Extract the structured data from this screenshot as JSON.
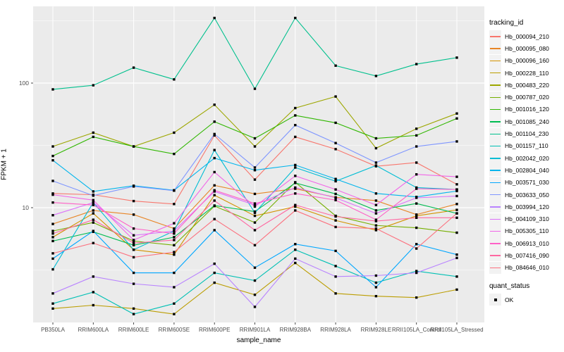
{
  "figure": {
    "background": "#FFFFFF",
    "panel_background": "#EBEBEB",
    "gridline_color": "#FFFFFF",
    "tick_label_color": "#4D4D4D",
    "point_color": "#000000",
    "point_shape": "square"
  },
  "legend": {
    "tracking_title": "tracking_id",
    "quant_title": "quant_status",
    "quant_items": [
      {
        "label": "OK",
        "shape": "black-square"
      }
    ]
  },
  "chart_data": {
    "type": "line",
    "title": "",
    "xlabel": "sample_name",
    "ylabel": "FPKM + 1",
    "y_scale": "log10",
    "ylim": [
      1.2,
      420
    ],
    "y_tick_labels": [
      "100",
      "10"
    ],
    "y_tick_values": [
      100,
      10
    ],
    "y_minor_gridlines": [
      316.23,
      31.62,
      3.162
    ],
    "grid": true,
    "legend_position": "right",
    "marker": "black-square",
    "categories": [
      "PB350LA",
      "RRIM600LA",
      "RRIM600LE",
      "RRIM600SE",
      "RRIM600PE",
      "RRIM901LA",
      "RRIM928BA",
      "RRIM928LA",
      "RRIM928LE",
      "RRII105LA_Control",
      "RRII105LA_Stressed"
    ],
    "series": [
      {
        "name": "Hb_000094_210",
        "color": "#F8766D",
        "values": [
          13,
          12.7,
          11.3,
          10.7,
          38,
          16.8,
          37,
          29.5,
          21.5,
          23,
          15.4
        ]
      },
      {
        "name": "Hb_000095_080",
        "color": "#E88526",
        "values": [
          7.4,
          9.5,
          8.8,
          6.8,
          15.1,
          12.9,
          14.2,
          12.1,
          11.4,
          8.8,
          10.7
        ]
      },
      {
        "name": "Hb_000096_160",
        "color": "#D39200",
        "values": [
          5.8,
          9.0,
          4.6,
          4.2,
          12.6,
          8.6,
          10.2,
          7.9,
          6.6,
          8.6,
          9.6
        ]
      },
      {
        "name": "Hb_000228_110",
        "color": "#BB9D00",
        "values": [
          1.55,
          1.65,
          1.55,
          1.4,
          2.5,
          2.0,
          3.6,
          2.05,
          1.95,
          1.9,
          2.2
        ]
      },
      {
        "name": "Hb_000483_220",
        "color": "#9DA700",
        "values": [
          31,
          40,
          31,
          40,
          67,
          31,
          63,
          78,
          30,
          43,
          57
        ]
      },
      {
        "name": "Hb_000787_020",
        "color": "#75AF00",
        "values": [
          6.5,
          7.6,
          5.4,
          5.0,
          10.3,
          7.6,
          16,
          8.6,
          7.2,
          6.9,
          6.3
        ]
      },
      {
        "name": "Hb_001016_120",
        "color": "#30B700",
        "values": [
          26,
          37,
          31,
          27,
          49,
          36,
          55,
          48,
          36,
          38,
          52
        ]
      },
      {
        "name": "Hb_001085_240",
        "color": "#00BC51",
        "values": [
          5.4,
          6.4,
          5.0,
          5.8,
          10.4,
          9.3,
          15.8,
          12.9,
          9.5,
          10.8,
          9.0
        ]
      },
      {
        "name": "Hb_001104_230",
        "color": "#00C08D",
        "values": [
          89,
          96,
          133,
          107,
          333,
          90,
          333,
          138,
          114,
          142,
          160
        ]
      },
      {
        "name": "Hb_001157_110",
        "color": "#00C0B4",
        "values": [
          1.7,
          2.1,
          1.4,
          1.7,
          3.0,
          2.6,
          4.6,
          3.4,
          2.5,
          3.1,
          2.8
        ]
      },
      {
        "name": "Hb_002042_020",
        "color": "#00BDD4",
        "values": [
          3.2,
          11,
          4.6,
          6.5,
          29,
          9.1,
          21,
          16.3,
          21.8,
          14.5,
          14
        ]
      },
      {
        "name": "Hb_002804_040",
        "color": "#00B5EC",
        "values": [
          24,
          13.5,
          15,
          13.8,
          25,
          20,
          22,
          17,
          13,
          12.2,
          13.6
        ]
      },
      {
        "name": "Hb_003571_030",
        "color": "#00A7FF",
        "values": [
          3.9,
          6.5,
          3.0,
          3.0,
          6.6,
          3.3,
          5.1,
          4.5,
          2.3,
          5.1,
          4.2
        ]
      },
      {
        "name": "Hb_003633_050",
        "color": "#7F96FF",
        "values": [
          16.4,
          12.5,
          14.8,
          13.7,
          39,
          21,
          46,
          33,
          23,
          31,
          34
        ]
      },
      {
        "name": "Hb_003994_120",
        "color": "#B983FF",
        "values": [
          2.05,
          2.8,
          2.45,
          2.3,
          3.55,
          1.6,
          3.9,
          2.8,
          2.85,
          3.0,
          3.95
        ]
      },
      {
        "name": "Hb_004109_310",
        "color": "#DC71FA",
        "values": [
          8.7,
          11,
          6.0,
          6.5,
          13.5,
          10.5,
          14.5,
          12,
          9.0,
          12.0,
          12.4
        ]
      },
      {
        "name": "Hb_005305_110",
        "color": "#F166E8",
        "values": [
          12.7,
          11.5,
          5.5,
          7.5,
          19.3,
          10.2,
          18,
          14,
          10.5,
          18.5,
          17.7
        ]
      },
      {
        "name": "Hb_006913_010",
        "color": "#FF61C7",
        "values": [
          11,
          10.5,
          6.8,
          6.2,
          13.8,
          10.8,
          13,
          11.5,
          8.0,
          14.2,
          14.0
        ]
      },
      {
        "name": "Hb_007416_090",
        "color": "#FF68A1",
        "values": [
          6.2,
          8.0,
          5.2,
          5.5,
          11.4,
          6.6,
          10.5,
          8.5,
          7.8,
          8.3,
          8.3
        ]
      },
      {
        "name": "Hb_084646_010",
        "color": "#FC717F",
        "values": [
          4.3,
          5.2,
          4.0,
          4.4,
          8.1,
          5.0,
          9.5,
          7.0,
          6.8,
          4.7,
          9.0
        ]
      }
    ]
  }
}
